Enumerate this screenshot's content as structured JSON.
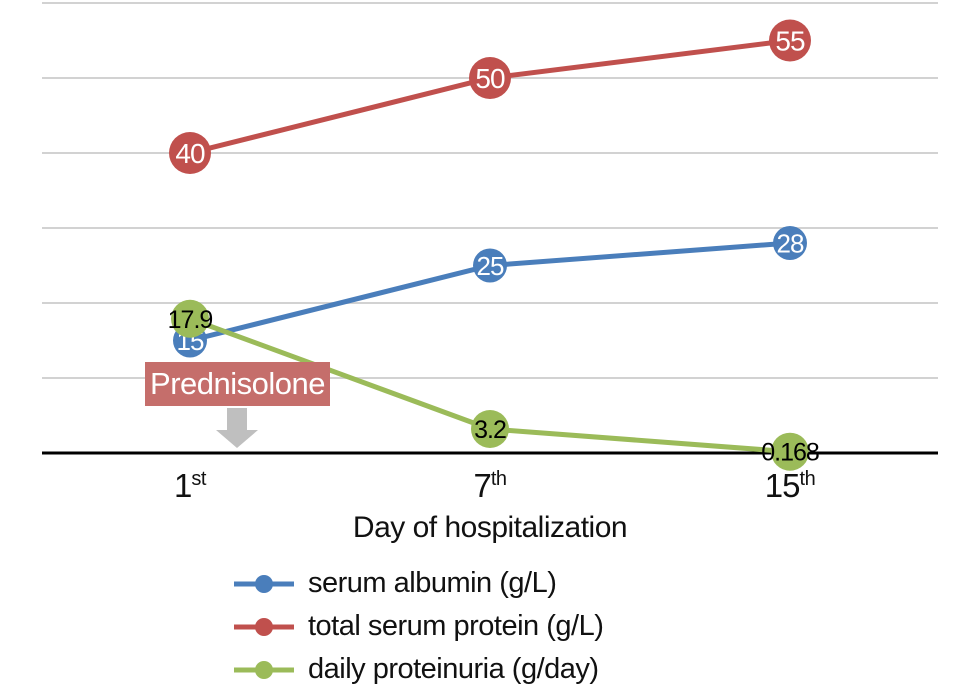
{
  "chart_data": {
    "type": "line",
    "categories": [
      {
        "value": "1",
        "suffix": "st"
      },
      {
        "value": "7",
        "suffix": "th"
      },
      {
        "value": "15",
        "suffix": "th"
      }
    ],
    "xlabel": "Day of hospitalization",
    "ylim": [
      0,
      60
    ],
    "grid_step": 10,
    "grid": "on",
    "legend_position": "bottom-left",
    "series": [
      {
        "name": "serum albumin (g/L)",
        "color": "#4a7ebb",
        "values": [
          15,
          25,
          28
        ],
        "labels": [
          "15",
          "25",
          "28"
        ],
        "label_color": "#ffffff",
        "marker_radius": 17,
        "label_size": 26
      },
      {
        "name": "total serum protein (g/L)",
        "color": "#c0504d",
        "values": [
          40,
          50,
          55
        ],
        "labels": [
          "40",
          "50",
          "55"
        ],
        "label_color": "#ffffff",
        "marker_radius": 21,
        "label_size": 28
      },
      {
        "name": "daily proteinuria (g/day)",
        "color": "#9bbb59",
        "values": [
          17.9,
          3.2,
          0.168
        ],
        "labels": [
          "17.9",
          "3.2",
          "0.168"
        ],
        "label_color": "#000000",
        "marker_radius": 19,
        "label_size": 25
      }
    ],
    "annotation": {
      "label": "Prednisolone",
      "bg_color": "#c56e6b",
      "text_color": "#ffffff",
      "arrow_color": "#bfbfbf"
    },
    "colors": {
      "gridline": "#d2d2d2",
      "axis": "#000000"
    }
  }
}
